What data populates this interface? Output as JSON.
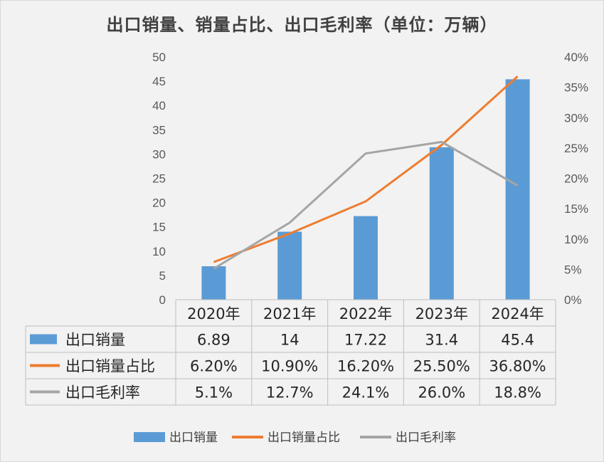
{
  "chart_data": {
    "type": "bar",
    "title": "出口销量、销量占比、出口毛利率（单位：万辆）",
    "categories": [
      "2020年",
      "2021年",
      "2022年",
      "2023年",
      "2024年"
    ],
    "y_left": {
      "ticks": [
        "0",
        "5",
        "10",
        "15",
        "20",
        "25",
        "30",
        "35",
        "40",
        "45",
        "50"
      ],
      "ylim": [
        0,
        50
      ]
    },
    "y_right": {
      "ticks": [
        "0%",
        "5%",
        "10%",
        "15%",
        "20%",
        "25%",
        "30%",
        "35%",
        "40%"
      ],
      "ylim": [
        0,
        40
      ]
    },
    "series": [
      {
        "name": "出口销量",
        "type": "bar",
        "axis": "left",
        "color": "#5b9bd5",
        "values": [
          6.89,
          14,
          17.22,
          31.4,
          45.4
        ],
        "labels": [
          "6.89",
          "14",
          "17.22",
          "31.4",
          "45.4"
        ]
      },
      {
        "name": "出口销量占比",
        "type": "line",
        "axis": "right",
        "color": "#ed7d31",
        "values": [
          6.2,
          10.9,
          16.2,
          25.5,
          36.8
        ],
        "labels": [
          "6.20%",
          "10.90%",
          "16.20%",
          "25.50%",
          "36.80%"
        ]
      },
      {
        "name": "出口毛利率",
        "type": "line",
        "axis": "right",
        "color": "#a5a5a5",
        "values": [
          5.1,
          12.7,
          24.1,
          26.0,
          18.8
        ],
        "labels": [
          "5.1%",
          "12.7%",
          "24.1%",
          "26.0%",
          "18.8%"
        ]
      }
    ],
    "legend": "bottom",
    "data_table": true
  }
}
